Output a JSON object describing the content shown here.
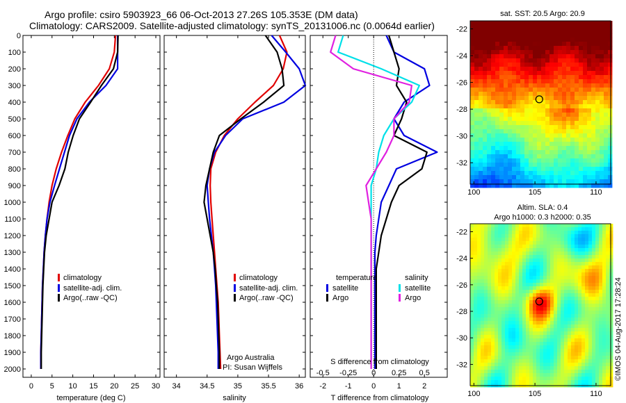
{
  "header": {
    "line1": "Argo profile: csiro 5903923_66 06-Oct-2013 27.26S 105.353E (DM data)",
    "line2": "Climatology: CARS2009. Satellite-adjusted climatology: synTS_20131006.nc (0.0064d earlier)"
  },
  "sst_title": "sat. SST: 20.5 Argo: 20.9",
  "sla_title1": "Altim. SLA: 0.4",
  "sla_title2": "Argo h1000: 0.3 h2000: 0.35",
  "credit": "©IMOS 04-Aug-2017 17:28:24",
  "colors": {
    "climatology": "#e00000",
    "satellite": "#0000e0",
    "argo": "#000000",
    "sat_salinity": "#00e0e8",
    "argo_salinity": "#e020e0"
  },
  "chart_data": [
    {
      "type": "line",
      "xlabel": "temperature (deg C)",
      "ylabel": "",
      "xlim": [
        -2,
        31
      ],
      "ylim": [
        2050,
        0
      ],
      "xticks": [
        0,
        5,
        10,
        15,
        20,
        25,
        30
      ],
      "yticks": [
        0,
        100,
        200,
        300,
        400,
        500,
        600,
        700,
        800,
        900,
        1000,
        1100,
        1200,
        1300,
        1400,
        1500,
        1600,
        1700,
        1800,
        1900,
        2000
      ],
      "legend": [
        "climatology",
        "satellite-adj. clim.",
        "Argo(..raw -QC)"
      ],
      "series": [
        {
          "name": "climatology",
          "color": "#e00000",
          "x": [
            20.3,
            20.0,
            18.8,
            16.2,
            13.0,
            10.5,
            8.8,
            7.3,
            6.0,
            5.0,
            4.3,
            3.8,
            3.4,
            3.1,
            2.9,
            2.7,
            2.6,
            2.5,
            2.4,
            2.3,
            2.3
          ],
          "y": [
            0,
            100,
            200,
            300,
            400,
            500,
            600,
            700,
            800,
            900,
            1000,
            1100,
            1200,
            1300,
            1400,
            1500,
            1600,
            1700,
            1800,
            1900,
            2000
          ]
        },
        {
          "name": "satellite-adj. clim.",
          "color": "#0000e0",
          "x": [
            20.8,
            20.8,
            20.8,
            18.0,
            14.0,
            11.0,
            9.2,
            8.0,
            6.8,
            5.6,
            4.5,
            3.8,
            3.4,
            3.1,
            2.9,
            2.7,
            2.6,
            2.5,
            2.4,
            2.3,
            2.3
          ],
          "y": [
            0,
            100,
            200,
            300,
            400,
            500,
            600,
            700,
            800,
            900,
            1000,
            1100,
            1200,
            1300,
            1400,
            1500,
            1600,
            1700,
            1800,
            1900,
            2000
          ]
        },
        {
          "name": "Argo(..raw -QC)",
          "color": "#000000",
          "x": [
            20.9,
            20.8,
            19.8,
            16.9,
            14.3,
            11.6,
            10.1,
            8.9,
            8.1,
            6.7,
            5.0,
            4.3,
            3.6,
            3.2,
            3.0,
            2.8,
            2.7,
            2.6,
            2.5,
            2.4,
            2.4
          ],
          "y": [
            0,
            100,
            200,
            300,
            400,
            500,
            600,
            700,
            800,
            900,
            1000,
            1100,
            1200,
            1300,
            1400,
            1500,
            1600,
            1700,
            1800,
            1900,
            2000
          ]
        }
      ]
    },
    {
      "type": "line",
      "xlabel": "salinity",
      "xlim": [
        33.8,
        36.1
      ],
      "ylim": [
        2050,
        0
      ],
      "xticks": [
        34,
        34.5,
        35,
        35.5,
        36
      ],
      "legend": [
        "climatology",
        "satellite-adj. clim.",
        "Argo(..raw -QC)"
      ],
      "annotation1": "Argo Australia",
      "annotation2": "PI: Susan Wijffels",
      "series": [
        {
          "name": "climatology",
          "color": "#e00000",
          "x": [
            35.68,
            35.8,
            35.74,
            35.58,
            35.28,
            35.0,
            34.78,
            34.64,
            34.56,
            34.55,
            34.56,
            34.58,
            34.6,
            34.62,
            34.64,
            34.66,
            34.68,
            34.69,
            34.7,
            34.71,
            34.72
          ],
          "y": [
            0,
            100,
            200,
            300,
            400,
            500,
            600,
            700,
            800,
            900,
            1000,
            1100,
            1200,
            1300,
            1400,
            1500,
            1600,
            1700,
            1800,
            1900,
            2000
          ]
        },
        {
          "name": "satellite-adj. clim.",
          "color": "#0000e0",
          "x": [
            35.55,
            35.78,
            36.0,
            36.1,
            35.75,
            35.08,
            34.8,
            34.62,
            34.54,
            34.5,
            34.52,
            34.54,
            34.57,
            34.6,
            34.62,
            34.64,
            34.65,
            34.66,
            34.67,
            34.68,
            34.68
          ],
          "y": [
            0,
            100,
            200,
            300,
            400,
            500,
            600,
            700,
            800,
            900,
            1000,
            1100,
            1200,
            1300,
            1400,
            1500,
            1600,
            1700,
            1800,
            1900,
            2000
          ]
        },
        {
          "name": "Argo(..raw -QC)",
          "color": "#000000",
          "x": [
            35.45,
            35.64,
            35.72,
            35.75,
            35.42,
            35.05,
            34.7,
            34.6,
            34.54,
            34.48,
            34.45,
            34.5,
            34.55,
            34.6,
            34.63,
            34.65,
            34.67,
            34.68,
            34.69,
            34.7,
            34.7
          ],
          "y": [
            0,
            100,
            200,
            300,
            400,
            500,
            600,
            700,
            800,
            900,
            1000,
            1100,
            1200,
            1300,
            1400,
            1500,
            1600,
            1700,
            1800,
            1900,
            2000
          ]
        }
      ]
    },
    {
      "type": "line",
      "xlabel": "T difference from climatology",
      "xlabel_top": "S difference from climatology",
      "xlim": [
        -2.5,
        2.9
      ],
      "ylim": [
        2050,
        0
      ],
      "xticks": [
        -2,
        -1,
        0,
        1,
        2
      ],
      "xticks_top": [
        -0.5,
        -0.25,
        0,
        0.25,
        0.5
      ],
      "legend_temp_title": "temperature",
      "legend_sal_title": "salinity",
      "legend": [
        "satellite",
        "Argo",
        "satellite",
        "Argo"
      ],
      "series": [
        {
          "name": "satellite",
          "group": "temperature",
          "color": "#0000e0",
          "x": [
            0.5,
            0.8,
            2.0,
            2.2,
            1.2,
            0.8,
            1.2,
            2.5,
            0.9,
            0.6,
            0.3,
            0.2,
            0.1,
            0.05,
            0.05,
            0.05,
            0.05,
            0.05,
            0.05,
            0.05,
            0.05
          ],
          "y": [
            0,
            100,
            200,
            300,
            400,
            500,
            600,
            700,
            800,
            900,
            1000,
            1100,
            1200,
            1300,
            1400,
            1500,
            1600,
            1700,
            1800,
            1900,
            2000
          ]
        },
        {
          "name": "Argo",
          "group": "temperature",
          "color": "#000000",
          "x": [
            0.6,
            0.8,
            1.0,
            0.9,
            1.3,
            1.1,
            0.8,
            2.1,
            1.9,
            1.0,
            0.7,
            0.5,
            0.3,
            0.2,
            0.1,
            0.1,
            0.1,
            0.1,
            0.1,
            0.1,
            0.1
          ],
          "y": [
            0,
            100,
            200,
            300,
            400,
            500,
            600,
            700,
            800,
            900,
            1000,
            1100,
            1200,
            1300,
            1400,
            1500,
            1600,
            1700,
            1800,
            1900,
            2000
          ]
        },
        {
          "name": "satellite",
          "group": "salinity",
          "color": "#00e0e8",
          "x": [
            -1.2,
            -1.4,
            0.3,
            1.8,
            1.5,
            0.8,
            0.4,
            0.2,
            0.1,
            -0.1,
            -0.1,
            -0.1,
            -0.1,
            -0.1,
            -0.1,
            -0.1,
            -0.1,
            -0.1,
            -0.1,
            -0.1,
            -0.1
          ],
          "y": [
            0,
            100,
            200,
            300,
            400,
            500,
            600,
            700,
            800,
            900,
            1000,
            1100,
            1200,
            1300,
            1400,
            1500,
            1600,
            1700,
            1800,
            1900,
            2000
          ]
        },
        {
          "name": "Argo",
          "group": "salinity",
          "color": "#e020e0",
          "x": [
            -1.5,
            -1.7,
            -0.8,
            1.5,
            1.4,
            0.8,
            0.8,
            0.5,
            0.1,
            -0.3,
            -0.2,
            -0.1,
            -0.1,
            -0.1,
            -0.1,
            -0.1,
            -0.1,
            -0.1,
            -0.1,
            -0.1,
            -0.1
          ],
          "y": [
            0,
            100,
            200,
            300,
            400,
            500,
            600,
            700,
            800,
            900,
            1000,
            1100,
            1200,
            1300,
            1400,
            1500,
            1600,
            1700,
            1800,
            1900,
            2000
          ]
        }
      ]
    },
    {
      "type": "heatmap",
      "title": "sat. SST: 20.5 Argo: 20.9",
      "xlim": [
        99.7,
        111.2
      ],
      "ylim": [
        -33.6,
        -21.4
      ],
      "xticks": [
        100,
        105,
        110
      ],
      "yticks": [
        -22,
        -24,
        -26,
        -28,
        -30,
        -32
      ],
      "marker": {
        "lon": 105.353,
        "lat": -27.26
      }
    },
    {
      "type": "heatmap",
      "title": "Altim. SLA: 0.4 / Argo h1000: 0.3 h2000: 0.35",
      "xlim": [
        99.7,
        111.2
      ],
      "ylim": [
        -33.6,
        -21.4
      ],
      "xticks": [
        100,
        105,
        110
      ],
      "yticks": [
        -22,
        -24,
        -26,
        -28,
        -30,
        -32
      ],
      "marker": {
        "lon": 105.353,
        "lat": -27.26
      }
    }
  ]
}
